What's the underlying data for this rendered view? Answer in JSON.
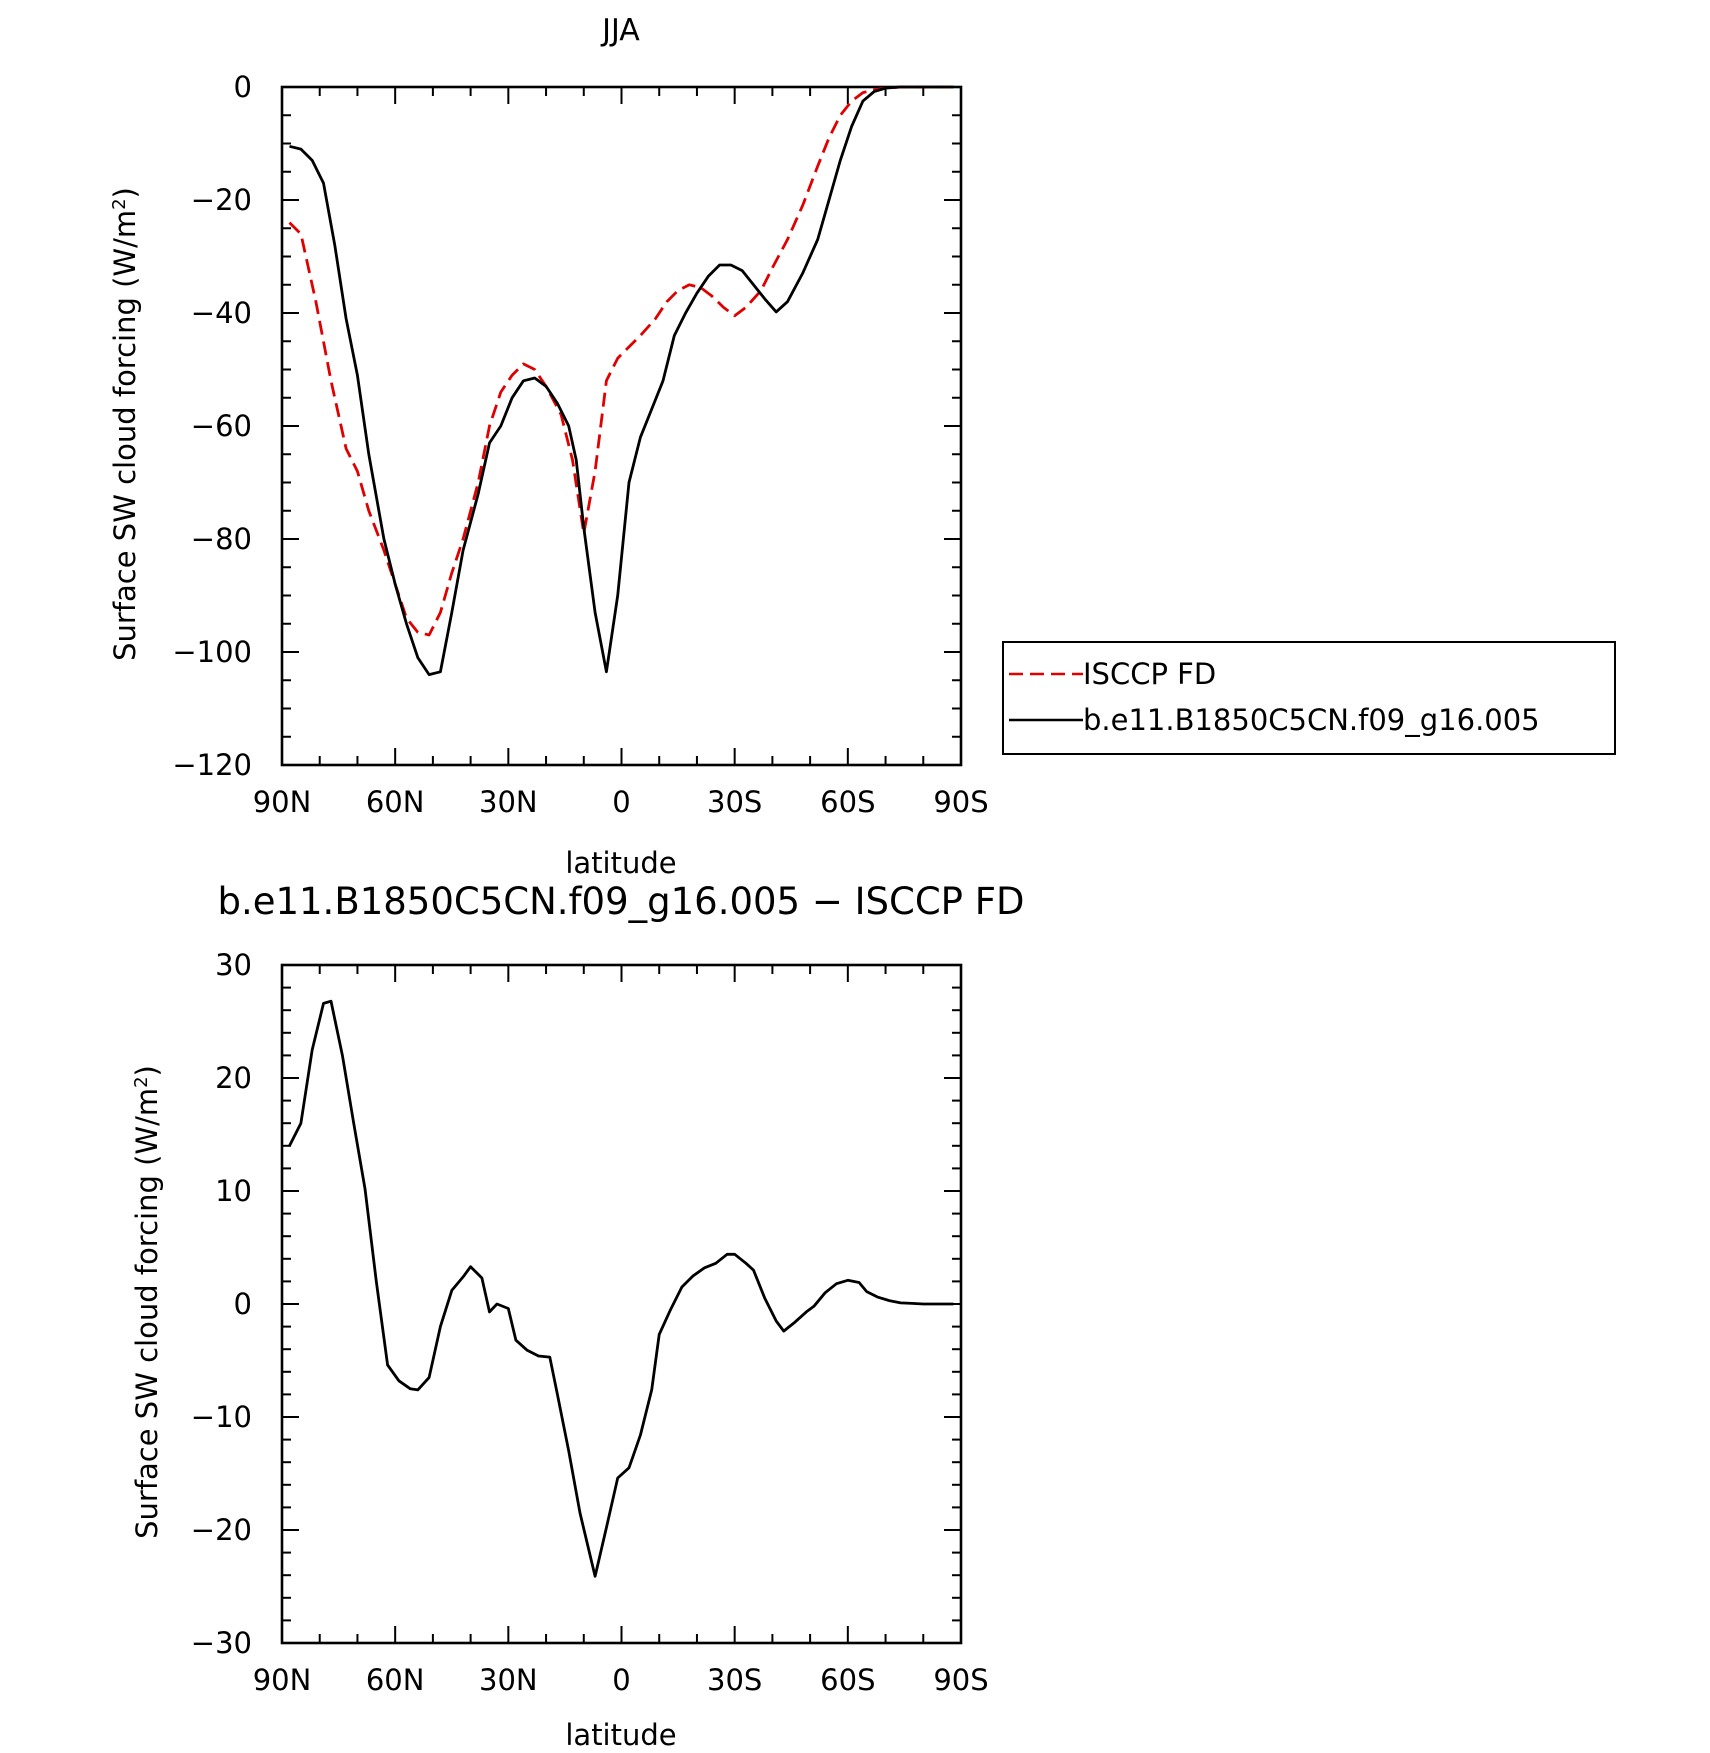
{
  "chart_data": [
    {
      "type": "line",
      "title": "JJA",
      "xlabel": "latitude",
      "ylabel": "Surface SW cloud forcing (W/m²)",
      "ylim": [
        -120,
        0
      ],
      "xlim": [
        90,
        -90
      ],
      "xticks": [
        {
          "value": 90,
          "label": "90N"
        },
        {
          "value": 60,
          "label": "60N"
        },
        {
          "value": 30,
          "label": "30N"
        },
        {
          "value": 0,
          "label": "0"
        },
        {
          "value": -30,
          "label": "30S"
        },
        {
          "value": -60,
          "label": "60S"
        },
        {
          "value": -90,
          "label": "90S"
        }
      ],
      "yticks": [
        0,
        -20,
        -40,
        -60,
        -80,
        -100,
        -120
      ],
      "grid": false,
      "legend": "right",
      "series": [
        {
          "name": "ISCCP FD",
          "color": "#e00000",
          "dash": "dashed",
          "x": [
            88,
            85,
            81,
            77,
            73,
            70,
            67,
            63,
            60,
            57,
            54,
            51,
            48,
            45,
            42,
            38,
            35,
            32,
            29,
            26,
            23,
            20,
            16,
            13,
            10,
            7,
            4,
            1,
            -2,
            -5,
            -9,
            -12,
            -15,
            -18,
            -21,
            -24,
            -27,
            -30,
            -33,
            -37,
            -40,
            -44,
            -48,
            -52,
            -55,
            -58,
            -61,
            -64,
            -67,
            -70,
            -74,
            -80,
            -88
          ],
          "y": [
            -24,
            -26,
            -38,
            -52,
            -64,
            -68,
            -75,
            -82,
            -88,
            -94,
            -96.5,
            -97,
            -93,
            -86,
            -80,
            -70,
            -60,
            -54,
            -51,
            -49,
            -50,
            -53,
            -58,
            -66,
            -79,
            -68,
            -52,
            -48,
            -46,
            -44,
            -41,
            -38,
            -36,
            -35,
            -35.5,
            -37,
            -39,
            -40.5,
            -39,
            -36,
            -32,
            -27,
            -21,
            -14,
            -9,
            -5,
            -2.5,
            -1,
            -0.5,
            -0.2,
            0,
            0,
            0
          ]
        },
        {
          "name": "b.e11.B1850C5CN.f09_g16.005",
          "color": "#000000",
          "dash": "solid",
          "x": [
            88,
            85,
            82,
            79,
            76,
            73,
            70,
            67,
            63,
            60,
            57,
            54,
            51,
            48,
            45,
            42,
            38,
            35,
            32,
            29,
            26,
            23,
            20,
            17,
            14,
            12,
            10,
            7,
            4,
            1,
            -2,
            -5,
            -8,
            -11,
            -14,
            -17,
            -20,
            -23,
            -26,
            -29,
            -32,
            -35,
            -38,
            -41,
            -44,
            -48,
            -52,
            -55,
            -58,
            -61,
            -64,
            -67,
            -70,
            -74,
            -80,
            -88
          ],
          "y": [
            -10.5,
            -11,
            -13,
            -17,
            -28,
            -41,
            -51,
            -65,
            -80,
            -88,
            -95,
            -101,
            -104,
            -103.5,
            -93,
            -82,
            -72,
            -63,
            -60,
            -55,
            -52,
            -51.5,
            -53,
            -56,
            -60,
            -66,
            -78,
            -93,
            -103.5,
            -90,
            -70,
            -62,
            -57,
            -52,
            -44,
            -40,
            -36.5,
            -33.5,
            -31.5,
            -31.5,
            -32.5,
            -35,
            -37.5,
            -39.8,
            -38,
            -33,
            -27,
            -20,
            -13,
            -7,
            -2.5,
            -0.8,
            -0.2,
            0,
            0,
            0
          ]
        }
      ]
    },
    {
      "type": "line",
      "title": "b.e11.B1850C5CN.f09_g16.005 − ISCCP FD",
      "xlabel": "latitude",
      "ylabel": "Surface SW cloud forcing (W/m²)",
      "ylim": [
        -30,
        30
      ],
      "xlim": [
        90,
        -90
      ],
      "xticks": [
        {
          "value": 90,
          "label": "90N"
        },
        {
          "value": 60,
          "label": "60N"
        },
        {
          "value": 30,
          "label": "30N"
        },
        {
          "value": 0,
          "label": "0"
        },
        {
          "value": -30,
          "label": "30S"
        },
        {
          "value": -60,
          "label": "60S"
        },
        {
          "value": -90,
          "label": "90S"
        }
      ],
      "yticks": [
        30,
        20,
        10,
        0,
        -10,
        -20,
        -30
      ],
      "grid": false,
      "series": [
        {
          "color": "#000000",
          "dash": "solid",
          "x": [
            88,
            85,
            82,
            79,
            77,
            74,
            71,
            68,
            65,
            62,
            59,
            56,
            54,
            51,
            48,
            45,
            42,
            40,
            37,
            35,
            33,
            30,
            28,
            25,
            22,
            19,
            17,
            14,
            11,
            7,
            4,
            1,
            -2,
            -5,
            -8,
            -10,
            -13,
            -16,
            -19,
            -22,
            -25,
            -28,
            -30,
            -33,
            -35,
            -38,
            -41,
            -43,
            -46,
            -49,
            -51,
            -54,
            -57,
            -60,
            -63,
            -65,
            -68,
            -71,
            -74,
            -77,
            -80,
            -88
          ],
          "y": [
            14,
            16,
            22.5,
            26.6,
            26.8,
            22,
            16,
            10.2,
            2,
            -5.4,
            -6.8,
            -7.5,
            -7.6,
            -6.5,
            -2,
            1.2,
            2.4,
            3.3,
            2.3,
            -0.7,
            0,
            -0.4,
            -3.2,
            -4.1,
            -4.6,
            -4.7,
            -8,
            -13,
            -18.5,
            -24.1,
            -19.8,
            -15.4,
            -14.5,
            -11.6,
            -7.6,
            -2.7,
            -0.5,
            1.5,
            2.5,
            3.2,
            3.6,
            4.4,
            4.4,
            3.6,
            3.0,
            0.5,
            -1.5,
            -2.4,
            -1.6,
            -0.7,
            -0.2,
            1.0,
            1.8,
            2.1,
            1.9,
            1.1,
            0.6,
            0.3,
            0.1,
            0.05,
            0,
            0
          ]
        }
      ]
    }
  ]
}
